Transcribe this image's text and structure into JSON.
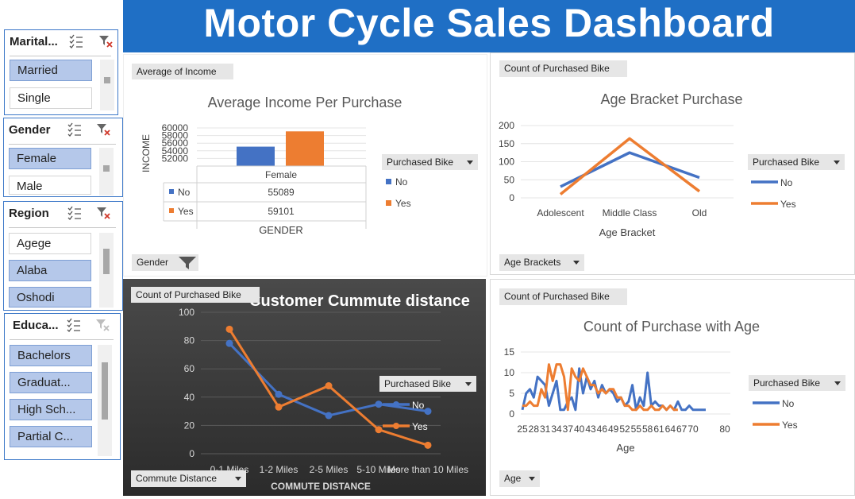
{
  "dashboard": {
    "title": "Motor Cycle Sales Dashboard"
  },
  "slicers": {
    "marital": {
      "title": "Marital...",
      "items": [
        "Married",
        "Single"
      ]
    },
    "gender": {
      "title": "Gender",
      "items": [
        "Female",
        "Male"
      ]
    },
    "region": {
      "title": "Region",
      "items": [
        "Agege",
        "Alaba",
        "Oshodi"
      ]
    },
    "education": {
      "title": "Educa...",
      "items": [
        "Bachelors",
        "Graduat...",
        "High Sch...",
        "Partial C..."
      ]
    }
  },
  "income_panel": {
    "value_button": "Average of Income",
    "axis_button": "Gender",
    "legend_button": "Purchased Bike",
    "table_rows": [
      "No",
      "Yes"
    ],
    "table_values": [
      "55089",
      "59101"
    ]
  },
  "age_bracket_panel": {
    "value_button": "Count of Purchased Bike",
    "axis_button": "Age Brackets",
    "legend_button": "Purchased Bike"
  },
  "commute_panel": {
    "value_button": "Count of Purchased Bike",
    "axis_button": "Commute Distance",
    "legend_button": "Purchased Bike"
  },
  "age_panel": {
    "value_button": "Count of Purchased Bike",
    "axis_button": "Age",
    "legend_button": "Purchased Bike"
  },
  "colors": {
    "no": "#4472c4",
    "yes": "#ed7d31",
    "banner": "#1f6fc5",
    "slicer_selected": "#b5c8ea"
  },
  "chart_data": [
    {
      "id": "income",
      "type": "bar",
      "title": "Average Income Per Purchase",
      "xlabel": "GENDER",
      "ylabel": "INCOME",
      "categories": [
        "Female"
      ],
      "series": [
        {
          "name": "No",
          "values": [
            55089
          ]
        },
        {
          "name": "Yes",
          "values": [
            59101
          ]
        }
      ],
      "ylim": [
        50000,
        60000
      ],
      "yticks": [
        "60000",
        "58000",
        "56000",
        "54000",
        "52000"
      ],
      "legend": "right"
    },
    {
      "id": "age_bracket",
      "type": "line",
      "title": "Age Bracket Purchase",
      "xlabel": "Age Bracket",
      "ylabel": "",
      "categories": [
        "Adolescent",
        "Middle Class",
        "Old"
      ],
      "series": [
        {
          "name": "No",
          "values": [
            31,
            125,
            56
          ]
        },
        {
          "name": "Yes",
          "values": [
            10,
            164,
            18
          ]
        }
      ],
      "ylim": [
        0,
        200
      ],
      "yticks": [
        "200",
        "150",
        "100",
        "50",
        "0"
      ],
      "grid": true,
      "legend": "right"
    },
    {
      "id": "commute",
      "type": "line",
      "title": "Customer Cummute distance",
      "xlabel": "COMMUTE DISTANCE",
      "ylabel": "",
      "categories": [
        "0-1 Miles",
        "1-2 Miles",
        "2-5 Miles",
        "5-10 Miles",
        "More than 10 Miles"
      ],
      "series": [
        {
          "name": "No",
          "values": [
            78,
            42,
            27,
            35,
            30
          ]
        },
        {
          "name": "Yes",
          "values": [
            88,
            33,
            48,
            17,
            6
          ]
        }
      ],
      "ylim": [
        0,
        100
      ],
      "yticks": [
        "100",
        "80",
        "60",
        "40",
        "20",
        "0"
      ],
      "grid": true,
      "legend": "right"
    },
    {
      "id": "age",
      "type": "line",
      "title": "Count of Purchase with Age",
      "xlabel": "Age",
      "ylabel": "",
      "x": [
        25,
        26,
        27,
        28,
        29,
        30,
        31,
        32,
        33,
        34,
        35,
        36,
        37,
        38,
        39,
        40,
        41,
        42,
        43,
        44,
        45,
        46,
        47,
        48,
        49,
        50,
        51,
        52,
        53,
        54,
        55,
        56,
        57,
        58,
        59,
        60,
        61,
        62,
        63,
        64,
        65,
        66,
        67,
        68,
        69,
        70,
        71,
        72,
        73,
        74,
        75,
        76,
        77,
        78,
        79,
        80
      ],
      "xticks": [
        "25",
        "28",
        "31",
        "34",
        "37",
        "40",
        "43",
        "46",
        "49",
        "52",
        "55",
        "58",
        "61",
        "64",
        "67",
        "70",
        "80"
      ],
      "series": [
        {
          "name": "No",
          "values": [
            1,
            5,
            6,
            4,
            9,
            8,
            7,
            2,
            5,
            8,
            1,
            1,
            3,
            4,
            1,
            11,
            5,
            9,
            6,
            8,
            4,
            7,
            5,
            6,
            5,
            3,
            4,
            2,
            3,
            7,
            1,
            4,
            2,
            10,
            2,
            3,
            2,
            2,
            1,
            2,
            1,
            3,
            1,
            1,
            2,
            1,
            1,
            1,
            1,
            1,
            null,
            null,
            null,
            null,
            null,
            null
          ]
        },
        {
          "name": "Yes",
          "values": [
            2,
            2,
            3,
            2,
            2,
            6,
            4,
            12,
            8,
            12,
            12,
            9,
            1,
            11,
            9,
            8,
            11,
            9,
            7,
            7,
            5,
            6,
            5,
            6,
            6,
            4,
            4,
            2,
            2,
            1,
            1,
            2,
            1,
            1,
            2,
            1,
            1,
            2,
            1,
            2,
            1,
            1,
            null,
            null,
            null,
            null,
            null,
            null,
            null,
            null,
            null,
            null,
            null,
            null,
            null,
            null
          ]
        }
      ],
      "ylim": [
        0,
        15
      ],
      "yticks": [
        "15",
        "10",
        "5",
        "0"
      ],
      "grid": true,
      "legend": "right"
    }
  ]
}
